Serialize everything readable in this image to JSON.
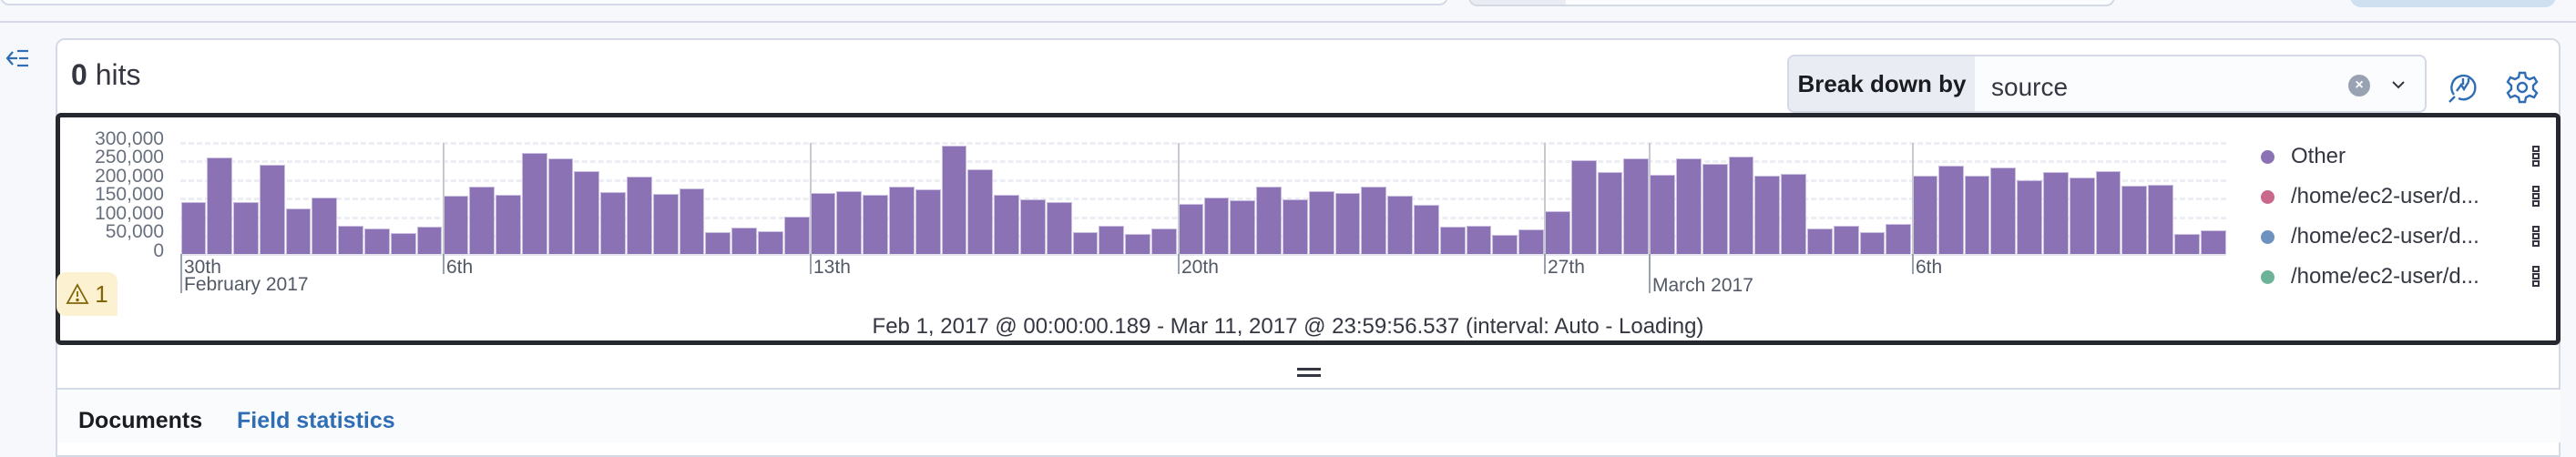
{
  "header": {
    "hits_count": "0",
    "hits_label": "hits"
  },
  "breakdown": {
    "label": "Break down by",
    "value": "source",
    "clear_icon": "clear-icon",
    "dropdown_icon": "chevron-down-icon"
  },
  "toolbar": {
    "inspect_icon": "chart-inspect-icon",
    "settings_icon": "gear-icon",
    "sidebar_toggle_icon": "collapse-sidebar-icon"
  },
  "warning": {
    "icon": "warning-icon",
    "count": "1"
  },
  "time_range": "Feb 1, 2017 @ 00:00:00.189 - Mar 11, 2017 @ 23:59:56.537 (interval: Auto - Loading)",
  "legend": [
    {
      "label": "Other",
      "color": "#8b72b4"
    },
    {
      "label": "/home/ec2-user/d...",
      "color": "#c9688a"
    },
    {
      "label": "/home/ec2-user/d...",
      "color": "#6e92c0"
    },
    {
      "label": "/home/ec2-user/d...",
      "color": "#6db39a"
    }
  ],
  "tabs": [
    {
      "label": "Documents",
      "active": true
    },
    {
      "label": "Field statistics",
      "active": false
    }
  ],
  "chart_data": {
    "type": "bar",
    "title": "",
    "xlabel": "",
    "ylabel": "",
    "ylim": [
      0,
      300000
    ],
    "grid": true,
    "legend_position": "right",
    "y_ticks": [
      "0",
      "50,000",
      "100,000",
      "150,000",
      "200,000",
      "250,000",
      "300,000"
    ],
    "x_ticks": [
      {
        "label": "30th",
        "sublabel": "February 2017",
        "x": 198
      },
      {
        "label": "6th",
        "x": 486
      },
      {
        "label": "13th",
        "x": 889
      },
      {
        "label": "20th",
        "x": 1293
      },
      {
        "label": "27th",
        "x": 1695
      },
      {
        "label": "",
        "sublabel": "March 2017",
        "x": 1810
      },
      {
        "label": "6th",
        "x": 2099
      }
    ],
    "series": [
      {
        "name": "Other",
        "color": "#8b72b4",
        "values": [
          141000,
          261000,
          139000,
          240000,
          122000,
          153000,
          76000,
          68000,
          56000,
          75000,
          157000,
          183000,
          160000,
          273000,
          259000,
          223000,
          168000,
          210000,
          163000,
          177000,
          58000,
          72000,
          61000,
          101000,
          166000,
          170000,
          160000,
          183000,
          174000,
          292000,
          228000,
          160000,
          148000,
          139000,
          60000,
          76000,
          55000,
          68000,
          135000,
          153000,
          145000,
          183000,
          148000,
          170000,
          166000,
          183000,
          158000,
          134000,
          73000,
          77000,
          52000,
          67000,
          115000,
          254000,
          221000,
          258000,
          214000,
          259000,
          244000,
          263000,
          211000,
          216000,
          70000,
          77000,
          60000,
          82000,
          211000,
          238000,
          211000,
          234000,
          200000,
          221000,
          206000,
          223000,
          184000,
          188000,
          55000,
          63000
        ]
      }
    ]
  }
}
